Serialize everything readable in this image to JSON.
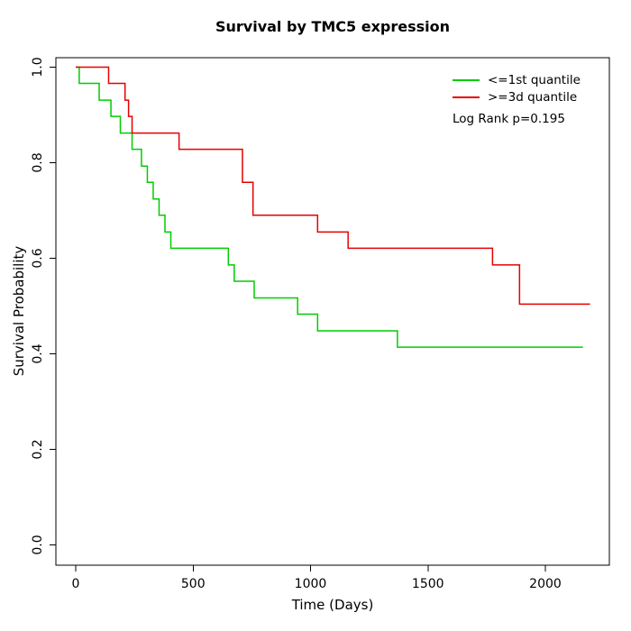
{
  "chart_data": {
    "type": "line",
    "subtype": "kaplan-meier-step",
    "title": "Survival by TMC5 expression",
    "xlabel": "Time (Days)",
    "ylabel": "Survival Probability",
    "xlim": [
      0,
      2200
    ],
    "ylim": [
      0.0,
      1.0
    ],
    "grid": false,
    "legend_position": "top-right",
    "x_tick_values": [
      0,
      500,
      1000,
      1500,
      2000
    ],
    "x_tick_labels": [
      "0",
      "500",
      "1000",
      "1500",
      "2000"
    ],
    "y_tick_values": [
      0.0,
      0.2,
      0.4,
      0.6,
      0.8,
      1.0
    ],
    "y_tick_labels": [
      "0.0",
      "0.2",
      "0.4",
      "0.6",
      "0.8",
      "1.0"
    ],
    "series": [
      {
        "name": "<=1st quantile",
        "color": "#00cc00",
        "end_time": 2160,
        "points": [
          [
            0,
            1.0
          ],
          [
            15,
            0.966
          ],
          [
            100,
            0.931
          ],
          [
            150,
            0.897
          ],
          [
            190,
            0.862
          ],
          [
            240,
            0.828
          ],
          [
            280,
            0.793
          ],
          [
            305,
            0.759
          ],
          [
            330,
            0.724
          ],
          [
            355,
            0.69
          ],
          [
            380,
            0.655
          ],
          [
            405,
            0.621
          ],
          [
            650,
            0.586
          ],
          [
            675,
            0.552
          ],
          [
            760,
            0.517
          ],
          [
            945,
            0.483
          ],
          [
            1030,
            0.448
          ],
          [
            1370,
            0.414
          ]
        ]
      },
      {
        "name": ">=3d quantile",
        "color": "#e60000",
        "end_time": 2190,
        "points": [
          [
            0,
            1.0
          ],
          [
            140,
            0.966
          ],
          [
            210,
            0.931
          ],
          [
            225,
            0.897
          ],
          [
            240,
            0.862
          ],
          [
            440,
            0.828
          ],
          [
            710,
            0.759
          ],
          [
            755,
            0.69
          ],
          [
            1030,
            0.655
          ],
          [
            1160,
            0.621
          ],
          [
            1775,
            0.586
          ],
          [
            1890,
            0.504
          ]
        ]
      }
    ],
    "annotations": [
      "Log Rank p=0.195"
    ]
  }
}
